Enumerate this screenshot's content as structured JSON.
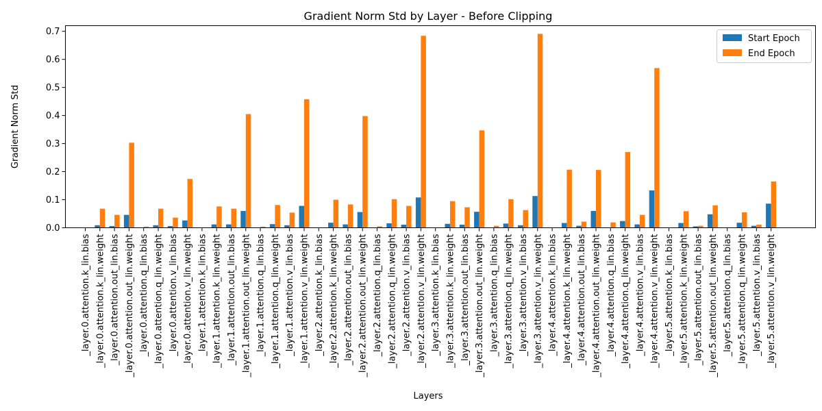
{
  "chart_data": {
    "type": "bar",
    "title": "Gradient Norm Std by Layer - Before Clipping",
    "xlabel": "Layers",
    "ylabel": "Gradient Norm Std",
    "ylim": [
      0,
      0.72
    ],
    "yticks": [
      "0.0",
      "0.1",
      "0.2",
      "0.3",
      "0.4",
      "0.5",
      "0.6",
      "0.7"
    ],
    "legend_position": "top-right",
    "categories": [
      "_layer.0.attention.k_lin.bias",
      "_layer.0.attention.k_lin.weight",
      "_layer.0.attention.out_lin.bias",
      "_layer.0.attention.out_lin.weight",
      "_layer.0.attention.q_lin.bias",
      "_layer.0.attention.q_lin.weight",
      "_layer.0.attention.v_lin.bias",
      "_layer.0.attention.v_lin.weight",
      "_layer.1.attention.k_lin.bias",
      "_layer.1.attention.k_lin.weight",
      "_layer.1.attention.out_lin.bias",
      "_layer.1.attention.out_lin.weight",
      "_layer.1.attention.q_lin.bias",
      "_layer.1.attention.q_lin.weight",
      "_layer.1.attention.v_lin.bias",
      "_layer.1.attention.v_lin.weight",
      "_layer.2.attention.k_lin.bias",
      "_layer.2.attention.k_lin.weight",
      "_layer.2.attention.out_lin.bias",
      "_layer.2.attention.out_lin.weight",
      "_layer.2.attention.q_lin.bias",
      "_layer.2.attention.q_lin.weight",
      "_layer.2.attention.v_lin.bias",
      "_layer.2.attention.v_lin.weight",
      "_layer.3.attention.k_lin.bias",
      "_layer.3.attention.k_lin.weight",
      "_layer.3.attention.out_lin.bias",
      "_layer.3.attention.out_lin.weight",
      "_layer.3.attention.q_lin.bias",
      "_layer.3.attention.q_lin.weight",
      "_layer.3.attention.v_lin.bias",
      "_layer.3.attention.v_lin.weight",
      "_layer.4.attention.k_lin.bias",
      "_layer.4.attention.k_lin.weight",
      "_layer.4.attention.out_lin.bias",
      "_layer.4.attention.out_lin.weight",
      "_layer.4.attention.q_lin.bias",
      "_layer.4.attention.q_lin.weight",
      "_layer.4.attention.v_lin.bias",
      "_layer.4.attention.v_lin.weight",
      "_layer.5.attention.k_lin.bias",
      "_layer.5.attention.k_lin.weight",
      "_layer.5.attention.out_lin.bias",
      "_layer.5.attention.out_lin.weight",
      "_layer.5.attention.q_lin.bias",
      "_layer.5.attention.q_lin.weight",
      "_layer.5.attention.v_lin.bias",
      "_layer.5.attention.v_lin.weight"
    ],
    "series": [
      {
        "name": "Start Epoch",
        "color": "#1f77b4",
        "values": [
          0.0,
          0.009,
          0.006,
          0.046,
          0.0,
          0.009,
          0.006,
          0.026,
          0.0,
          0.012,
          0.012,
          0.06,
          0.0,
          0.013,
          0.009,
          0.078,
          0.0,
          0.018,
          0.012,
          0.056,
          0.001,
          0.016,
          0.011,
          0.108,
          0.0,
          0.014,
          0.011,
          0.057,
          0.001,
          0.015,
          0.009,
          0.113,
          0.0,
          0.017,
          0.007,
          0.06,
          0.001,
          0.024,
          0.012,
          0.133,
          0.0,
          0.017,
          0.005,
          0.048,
          0.0,
          0.018,
          0.007,
          0.086
        ]
      },
      {
        "name": "End Epoch",
        "color": "#ff7f0e",
        "values": [
          0.0,
          0.068,
          0.046,
          0.303,
          0.004,
          0.068,
          0.036,
          0.174,
          0.0,
          0.076,
          0.068,
          0.405,
          0.004,
          0.081,
          0.054,
          0.458,
          0.0,
          0.1,
          0.083,
          0.398,
          0.005,
          0.102,
          0.078,
          0.684,
          0.0,
          0.095,
          0.073,
          0.347,
          0.007,
          0.102,
          0.063,
          0.691,
          0.0,
          0.207,
          0.022,
          0.206,
          0.019,
          0.27,
          0.046,
          0.569,
          0.0,
          0.059,
          0.007,
          0.08,
          0.001,
          0.055,
          0.011,
          0.165
        ]
      }
    ]
  }
}
